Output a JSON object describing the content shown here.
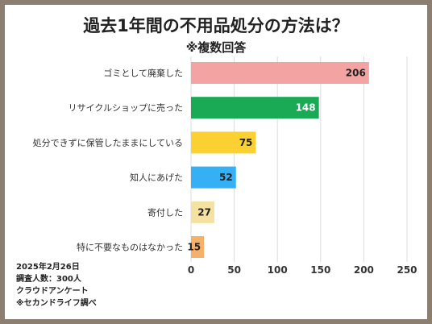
{
  "title": "過去1年間の不用品処分の方法は？",
  "subtitle": "※複数回答",
  "notes": [
    "2025年2月26日",
    "調査人数：300人",
    "クラウドアンケート",
    "※セカンドライフ調べ"
  ],
  "chart_data": {
    "type": "bar",
    "orientation": "horizontal",
    "title": "過去1年間の不用品処分の方法は？",
    "subtitle": "※複数回答",
    "categories": [
      "ゴミとして廃棄した",
      "リサイクルショップに売った",
      "処分できずに保管したままにしている",
      "知人にあげた",
      "寄付した",
      "特に不要なものはなかった"
    ],
    "values": [
      206,
      148,
      75,
      52,
      27,
      15
    ],
    "colors": [
      "#f4a3a3",
      "#1aaa55",
      "#fbd131",
      "#35b0f4",
      "#f5e1a0",
      "#f5b06a"
    ],
    "value_label_colors": [
      "#222222",
      "#ffffff",
      "#222222",
      "#222222",
      "#222222",
      "#222222"
    ],
    "xlim": [
      0,
      250
    ],
    "xticks": [
      0,
      50,
      100,
      150,
      200,
      250
    ],
    "grid": true,
    "legend": "none"
  }
}
